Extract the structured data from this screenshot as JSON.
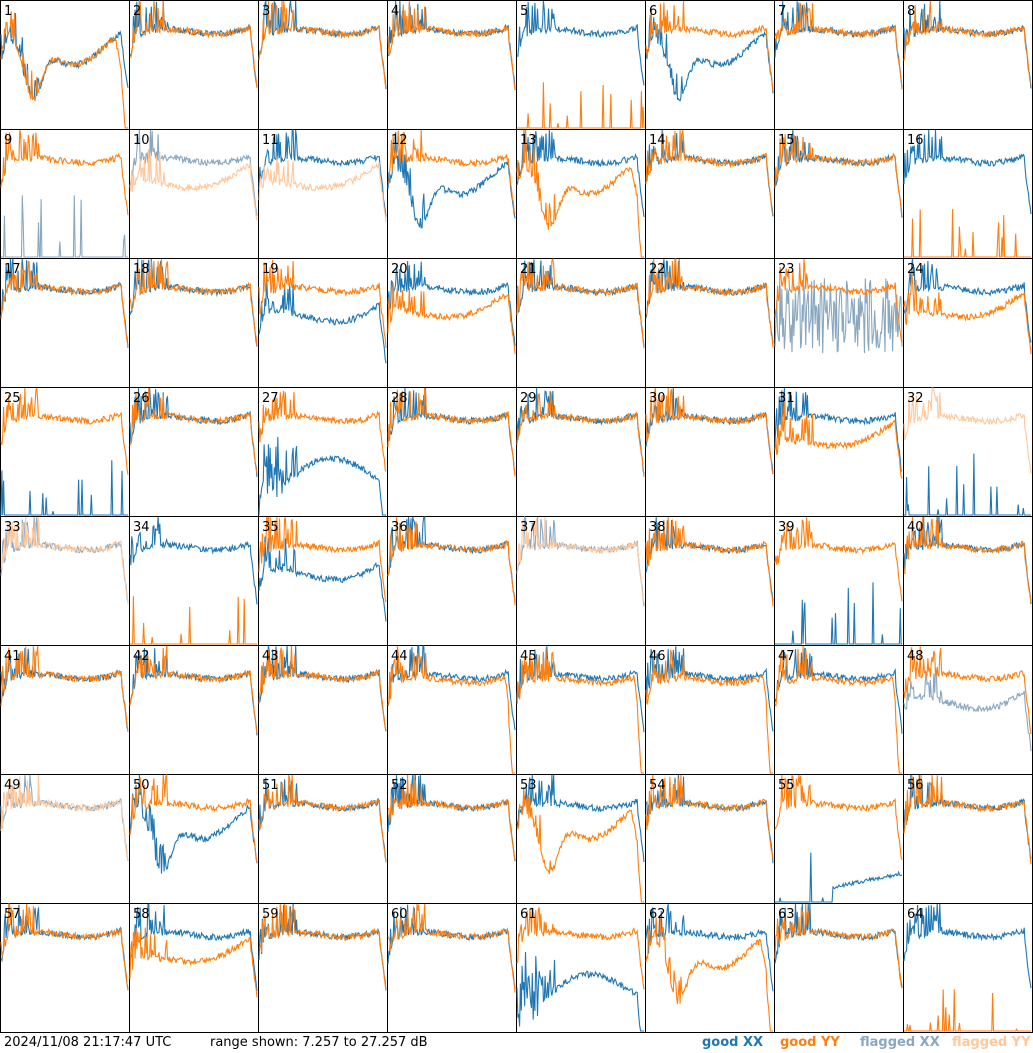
{
  "footer": {
    "timestamp": "2024/11/08 21:17:47 UTC",
    "range": "range shown: 7.257 to 27.257 dB"
  },
  "legend": [
    {
      "label": "good XX",
      "color": "#1f77b4"
    },
    {
      "label": "good YY",
      "color": "#ff7f0e"
    },
    {
      "label": "flagged XX",
      "color": "#8aa7c0"
    },
    {
      "label": "flagged YY",
      "color": "#ffc79a"
    }
  ],
  "chart_data": {
    "type": "line",
    "layout": "8x8 small multiples",
    "x_axis": "frequency channel (unlabeled)",
    "ylim_db": [
      7.257,
      27.257
    ],
    "panels": [
      {
        "id": 1,
        "xx": "good",
        "yy": "good",
        "shape": "dip"
      },
      {
        "id": 2,
        "xx": "good",
        "yy": "good",
        "shape": "normal"
      },
      {
        "id": 3,
        "xx": "good",
        "yy": "good",
        "shape": "normal"
      },
      {
        "id": 4,
        "xx": "good",
        "yy": "good",
        "shape": "normal"
      },
      {
        "id": 5,
        "xx": "good",
        "yy": "good",
        "shape": "yy-dead"
      },
      {
        "id": 6,
        "xx": "good",
        "yy": "good",
        "shape": "xx-dip"
      },
      {
        "id": 7,
        "xx": "good",
        "yy": "good",
        "shape": "normal"
      },
      {
        "id": 8,
        "xx": "good",
        "yy": "good",
        "shape": "normal"
      },
      {
        "id": 9,
        "xx": "flagged",
        "yy": "good",
        "shape": "xx-dead"
      },
      {
        "id": 10,
        "xx": "flagged",
        "yy": "flagged",
        "shape": "low-yy"
      },
      {
        "id": 11,
        "xx": "good",
        "yy": "flagged",
        "shape": "low-yy"
      },
      {
        "id": 12,
        "xx": "good",
        "yy": "good",
        "shape": "xx-dip"
      },
      {
        "id": 13,
        "xx": "good",
        "yy": "good",
        "shape": "yy-dip"
      },
      {
        "id": 14,
        "xx": "good",
        "yy": "good",
        "shape": "normal"
      },
      {
        "id": 15,
        "xx": "good",
        "yy": "good",
        "shape": "normal"
      },
      {
        "id": 16,
        "xx": "good",
        "yy": "good",
        "shape": "yy-dead"
      },
      {
        "id": 17,
        "xx": "good",
        "yy": "good",
        "shape": "normal"
      },
      {
        "id": 18,
        "xx": "good",
        "yy": "good",
        "shape": "normal"
      },
      {
        "id": 19,
        "xx": "good",
        "yy": "good",
        "shape": "xx-low"
      },
      {
        "id": 20,
        "xx": "good",
        "yy": "good",
        "shape": "yy-low"
      },
      {
        "id": 21,
        "xx": "good",
        "yy": "good",
        "shape": "normal"
      },
      {
        "id": 22,
        "xx": "good",
        "yy": "good",
        "shape": "normal"
      },
      {
        "id": 23,
        "xx": "flagged",
        "yy": "good",
        "shape": "xx-noisy"
      },
      {
        "id": 24,
        "xx": "good",
        "yy": "good",
        "shape": "yy-low"
      },
      {
        "id": 25,
        "xx": "good",
        "yy": "good",
        "shape": "xx-dead"
      },
      {
        "id": 26,
        "xx": "good",
        "yy": "good",
        "shape": "normal"
      },
      {
        "id": 27,
        "xx": "good",
        "yy": "good",
        "shape": "xx-hump"
      },
      {
        "id": 28,
        "xx": "good",
        "yy": "good",
        "shape": "normal"
      },
      {
        "id": 29,
        "xx": "good",
        "yy": "good",
        "shape": "normal"
      },
      {
        "id": 30,
        "xx": "good",
        "yy": "good",
        "shape": "normal"
      },
      {
        "id": 31,
        "xx": "good",
        "yy": "good",
        "shape": "yy-low"
      },
      {
        "id": 32,
        "xx": "good",
        "yy": "flagged",
        "shape": "xx-dead"
      },
      {
        "id": 33,
        "xx": "flagged",
        "yy": "flagged",
        "shape": "normal"
      },
      {
        "id": 34,
        "xx": "good",
        "yy": "good",
        "shape": "yy-dead"
      },
      {
        "id": 35,
        "xx": "good",
        "yy": "good",
        "shape": "xx-low"
      },
      {
        "id": 36,
        "xx": "good",
        "yy": "good",
        "shape": "normal"
      },
      {
        "id": 37,
        "xx": "flagged",
        "yy": "flagged",
        "shape": "normal"
      },
      {
        "id": 38,
        "xx": "good",
        "yy": "good",
        "shape": "normal"
      },
      {
        "id": 39,
        "xx": "good",
        "yy": "good",
        "shape": "xx-dead"
      },
      {
        "id": 40,
        "xx": "good",
        "yy": "good",
        "shape": "normal"
      },
      {
        "id": 41,
        "xx": "good",
        "yy": "good",
        "shape": "normal"
      },
      {
        "id": 42,
        "xx": "good",
        "yy": "good",
        "shape": "normal"
      },
      {
        "id": 43,
        "xx": "good",
        "yy": "good",
        "shape": "normal"
      },
      {
        "id": 44,
        "xx": "good",
        "yy": "good",
        "shape": "yy-droop"
      },
      {
        "id": 45,
        "xx": "good",
        "yy": "good",
        "shape": "yy-droop"
      },
      {
        "id": 46,
        "xx": "good",
        "yy": "good",
        "shape": "yy-droop"
      },
      {
        "id": 47,
        "xx": "good",
        "yy": "good",
        "shape": "yy-droop"
      },
      {
        "id": 48,
        "xx": "flagged",
        "yy": "good",
        "shape": "xx-low"
      },
      {
        "id": 49,
        "xx": "flagged",
        "yy": "flagged",
        "shape": "normal"
      },
      {
        "id": 50,
        "xx": "good",
        "yy": "good",
        "shape": "xx-dip"
      },
      {
        "id": 51,
        "xx": "good",
        "yy": "good",
        "shape": "normal"
      },
      {
        "id": 52,
        "xx": "good",
        "yy": "good",
        "shape": "normal"
      },
      {
        "id": 53,
        "xx": "good",
        "yy": "good",
        "shape": "yy-dip"
      },
      {
        "id": 54,
        "xx": "good",
        "yy": "good",
        "shape": "normal"
      },
      {
        "id": 55,
        "xx": "good",
        "yy": "good",
        "shape": "xx-dead"
      },
      {
        "id": 56,
        "xx": "good",
        "yy": "good",
        "shape": "normal"
      },
      {
        "id": 57,
        "xx": "good",
        "yy": "good",
        "shape": "normal"
      },
      {
        "id": 58,
        "xx": "good",
        "yy": "good",
        "shape": "yy-low"
      },
      {
        "id": 59,
        "xx": "good",
        "yy": "good",
        "shape": "normal"
      },
      {
        "id": 60,
        "xx": "good",
        "yy": "good",
        "shape": "normal"
      },
      {
        "id": 61,
        "xx": "good",
        "yy": "good",
        "shape": "xx-hump"
      },
      {
        "id": 62,
        "xx": "good",
        "yy": "good",
        "shape": "yy-dip"
      },
      {
        "id": 63,
        "xx": "good",
        "yy": "good",
        "shape": "normal"
      },
      {
        "id": 64,
        "xx": "good",
        "yy": "good",
        "shape": "yy-dead"
      }
    ]
  }
}
